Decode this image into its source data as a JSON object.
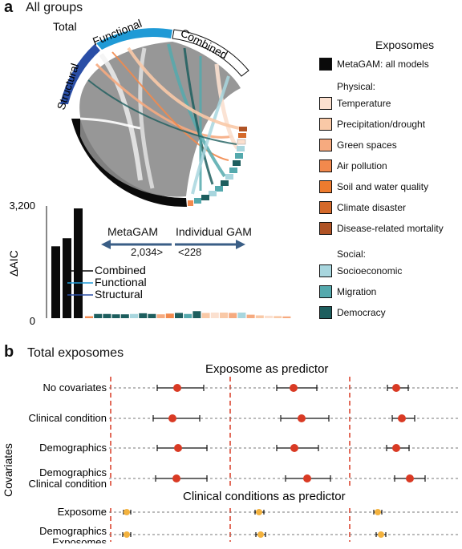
{
  "panel_a": {
    "letter": "a",
    "title": "All groups",
    "chord_arc_labels": {
      "total": "Total",
      "structural": "Structural",
      "functional": "Functional",
      "combined": "Combined"
    },
    "metagam_label": "MetaGAM",
    "individual_label": "Individual GAM",
    "metagam_value": "2,034>",
    "individual_value": "<228"
  },
  "legend": {
    "title": "Exposomes",
    "all_models": "MetaGAM: all models",
    "physical_header": "Physical:",
    "physical": [
      {
        "label": "Temperature",
        "color": "#fbe0cf"
      },
      {
        "label": "Precipitation/drought",
        "color": "#f9c9a7"
      },
      {
        "label": "Green spaces",
        "color": "#f6aa7f"
      },
      {
        "label": "Air pollution",
        "color": "#f2894d"
      },
      {
        "label": "Soil and water quality",
        "color": "#ee7b2e"
      },
      {
        "label": "Climate disaster",
        "color": "#d4692a"
      },
      {
        "label": "Disease-related mortality",
        "color": "#b05325"
      }
    ],
    "social_header": "Social:",
    "social": [
      {
        "label": "Socioeconomic",
        "color": "#a8d6de"
      },
      {
        "label": "Migration",
        "color": "#54a9ad"
      },
      {
        "label": "Democracy",
        "color": "#1d5e5e"
      }
    ]
  },
  "chart_data": {
    "type": "bar",
    "ylabel": "ΔAIC",
    "ytick_labels": [
      "3,200",
      "0"
    ],
    "ylim": [
      0,
      3200
    ],
    "series": [
      {
        "name": "Structural",
        "values": [
          2050
        ]
      },
      {
        "name": "Functional",
        "values": [
          2280
        ]
      },
      {
        "name": "Combined",
        "values": [
          3130
        ]
      }
    ],
    "individual_gam_values": [
      55,
      120,
      120,
      110,
      110,
      120,
      140,
      120,
      110,
      130,
      150,
      120,
      200,
      150,
      160,
      160,
      150,
      160,
      100,
      80,
      70,
      60,
      50
    ],
    "individual_gam_colors": [
      "#f2894d",
      "#1d5e5e",
      "#1d5e5e",
      "#1d5e5e",
      "#1d5e5e",
      "#a8d6de",
      "#1d5e5e",
      "#1d5e5e",
      "#f6aa7f",
      "#f2894d",
      "#1d5e5e",
      "#54a9ad",
      "#1d5e5e",
      "#f9c9a7",
      "#fbe0cf",
      "#f9c9a7",
      "#f6aa7f",
      "#a8d6de",
      "#f6aa7f",
      "#f9c9a7",
      "#fbe0cf",
      "#f9c9a7",
      "#f6aa7f"
    ]
  },
  "panel_b": {
    "letter": "b",
    "title": "Total exposomes",
    "predictor_header_1": "Exposome as predictor",
    "predictor_header_2": "Clinical conditions as predictor",
    "covariates_label": "Covariates",
    "rows_1": [
      "No covariates",
      "Clinical condition",
      "Demographics"
    ],
    "row_1_multi": [
      "Demographics",
      "Clinical condition"
    ],
    "rows_2": [
      "Exposome"
    ],
    "row_2_multi": [
      "Demographics",
      "Exposomes"
    ],
    "point_color_1": "#d93a24",
    "point_color_2": "#f3b23e",
    "ref_line_color": "#d93a24"
  }
}
